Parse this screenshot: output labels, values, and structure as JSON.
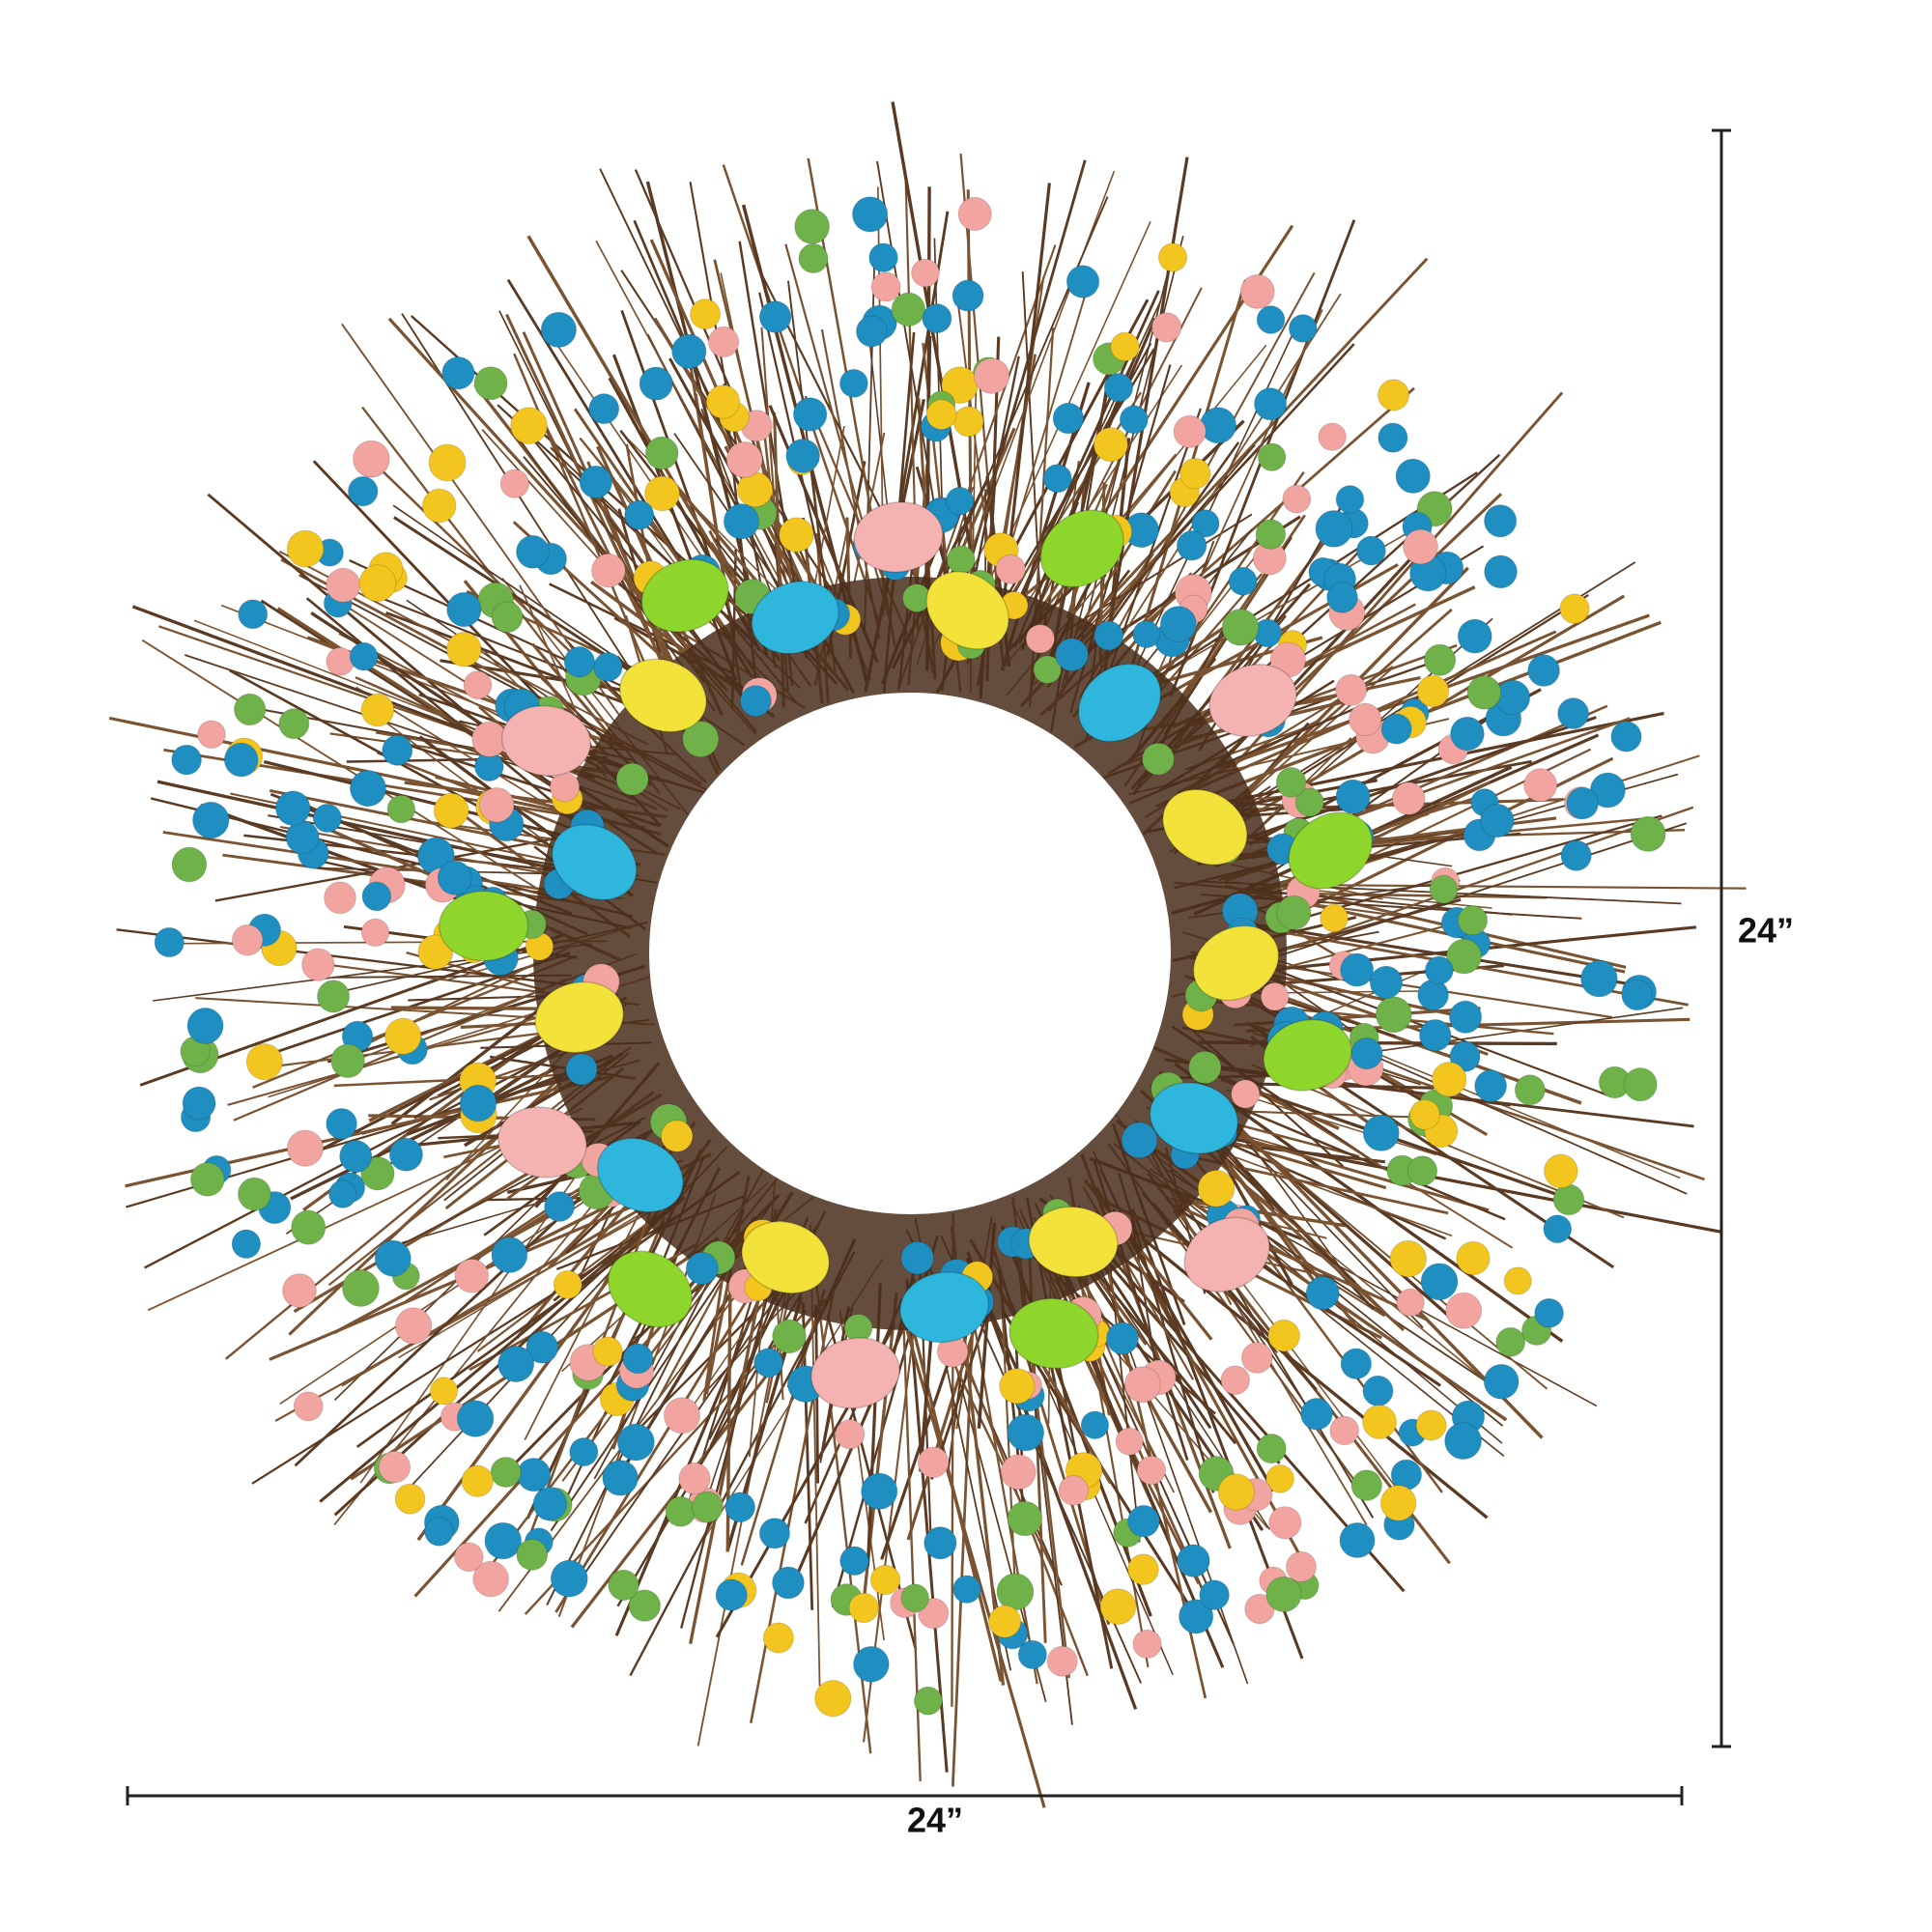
{
  "dimensions": {
    "width": "24”",
    "height": "24”"
  }
}
